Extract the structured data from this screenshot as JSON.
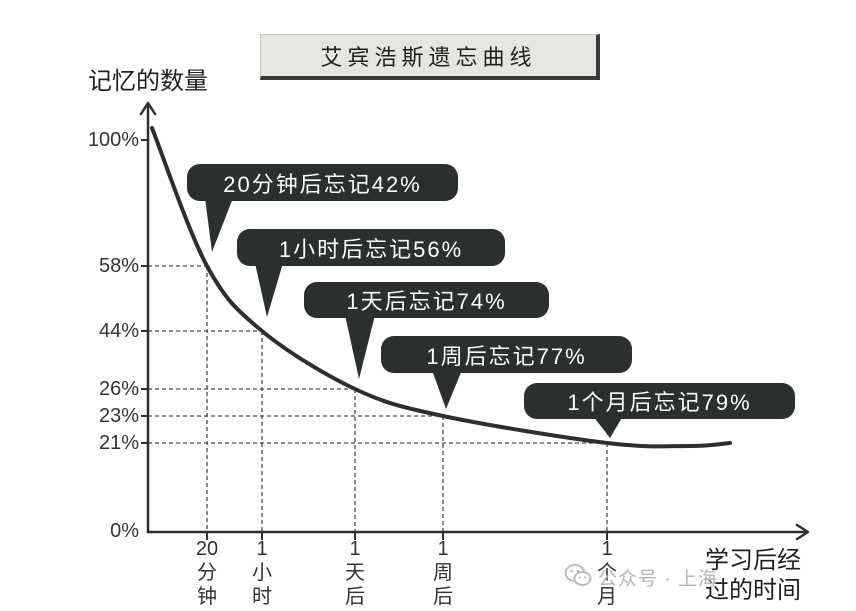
{
  "chart_data": {
    "type": "line",
    "title": "艾宾浩斯遗忘曲线",
    "ylabel": "记忆的数量",
    "xlabel": "学习后经过的时间",
    "ylim": [
      0,
      100
    ],
    "yticks": [
      {
        "value": 100,
        "label": "100%"
      },
      {
        "value": 58,
        "label": "58%"
      },
      {
        "value": 44,
        "label": "44%"
      },
      {
        "value": 26,
        "label": "26%"
      },
      {
        "value": 23,
        "label": "23%"
      },
      {
        "value": 21,
        "label": "21%"
      },
      {
        "value": 0,
        "label": "0%"
      }
    ],
    "start_value": 100,
    "categories": [
      "20分钟",
      "1小时",
      "1天后",
      "1周后",
      "1个月"
    ],
    "values": [
      58,
      44,
      26,
      23,
      21
    ],
    "annotations": [
      "20分钟后忘记42%",
      "1小时后忘记56%",
      "1天后忘记74%",
      "1周后忘记77%",
      "1个月后忘记79%"
    ],
    "grid": false
  },
  "watermark": {
    "icon": "wechat-icon",
    "text": "公众号 · 上海"
  },
  "colors": {
    "curve": "#2b2f2e",
    "callout_bg": "#2b2f2e",
    "callout_text": "#ffffff",
    "title_bg": "#e7e5e2",
    "title_shadow": "#3a3a3a",
    "axis": "#2f2f2f",
    "guide": "#4a4a4a",
    "label": "#2b2b2b"
  }
}
